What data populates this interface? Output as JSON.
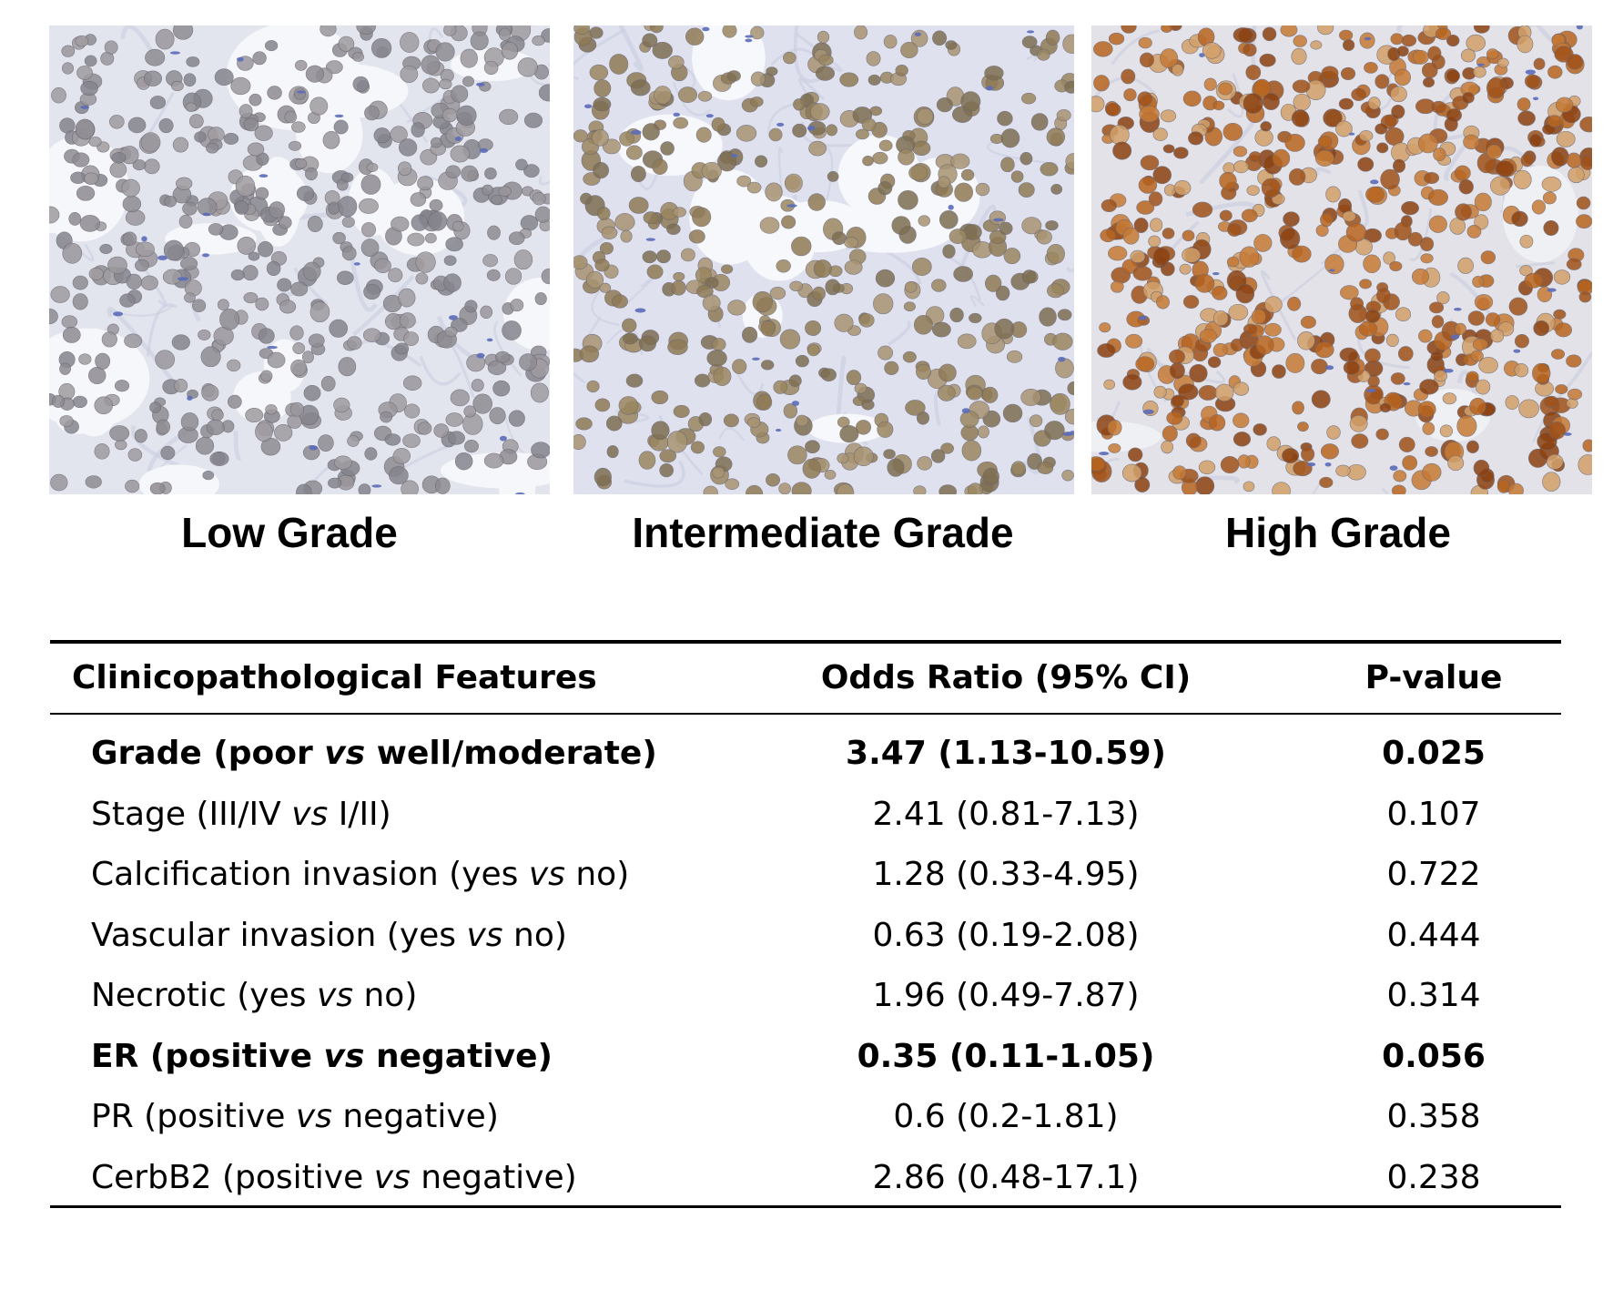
{
  "panels": [
    {
      "caption": "Low Grade",
      "stain": "low"
    },
    {
      "caption": "Intermediate Grade",
      "stain": "intermediate"
    },
    {
      "caption": "High Grade",
      "stain": "high"
    }
  ],
  "colors": {
    "background": "#ffffff",
    "tissue_background": "#e4e6ef",
    "hematoxylin_blue": "#5a6ab8",
    "dab_brown": "#a0521a",
    "rule": "#000000"
  },
  "table": {
    "headers": {
      "feature": "Clinicopathological Features",
      "odds_ratio": "Odds Ratio (95% CI)",
      "p_value": "P-value"
    },
    "rows": [
      {
        "pre": "Grade (poor ",
        "vs": "vs",
        "post": " well/moderate)",
        "or": "3.47 (1.13-10.59)",
        "p": "0.025",
        "bold": true
      },
      {
        "pre": "Stage (III/IV ",
        "vs": "vs",
        "post": " I/II)",
        "or": "2.41 (0.81-7.13)",
        "p": "0.107",
        "bold": false
      },
      {
        "pre": "Calcification invasion (yes ",
        "vs": "vs",
        "post": " no)",
        "or": "1.28 (0.33-4.95)",
        "p": "0.722",
        "bold": false
      },
      {
        "pre": "Vascular invasion (yes ",
        "vs": "vs",
        "post": " no)",
        "or": "0.63 (0.19-2.08)",
        "p": "0.444",
        "bold": false
      },
      {
        "pre": "Necrotic (yes ",
        "vs": "vs",
        "post": " no)",
        "or": "1.96 (0.49-7.87)",
        "p": "0.314",
        "bold": false
      },
      {
        "pre": "ER (positive ",
        "vs": "vs",
        "post": " negative)",
        "or": "0.35 (0.11-1.05)",
        "p": "0.056",
        "bold": true
      },
      {
        "pre": "PR (positive ",
        "vs": "vs",
        "post": " negative)",
        "or": "0.6 (0.2-1.81)",
        "p": "0.358",
        "bold": false
      },
      {
        "pre": "CerbB2 (positive ",
        "vs": "vs",
        "post": " negative)",
        "or": "2.86 (0.48-17.1)",
        "p": "0.238",
        "bold": false
      }
    ]
  }
}
